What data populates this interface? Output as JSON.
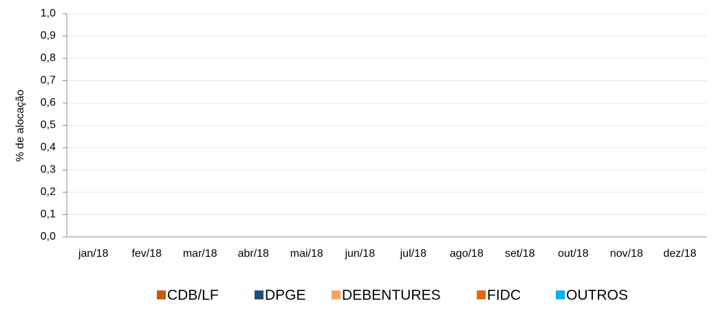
{
  "chart_data": {
    "type": "bar",
    "stacked": true,
    "y_label": "% de alocação",
    "categories": [
      "jan/18",
      "fev/18",
      "mar/18",
      "abr/18",
      "mai/18",
      "jun/18",
      "jul/18",
      "ago/18",
      "set/18",
      "out/18",
      "nov/18",
      "dez/18"
    ],
    "series": [
      {
        "name": "CDB/LF",
        "color": "#c55a11",
        "values": [
          0,
          0,
          0,
          0,
          0,
          0,
          0,
          0,
          0,
          0,
          0,
          0
        ]
      },
      {
        "name": "DPGE",
        "color": "#1f4e79",
        "values": [
          0,
          0,
          0,
          0,
          0,
          0,
          0,
          0,
          0,
          0,
          0,
          0
        ]
      },
      {
        "name": "DEBENTURES",
        "color": "#f4a460",
        "values": [
          0,
          0,
          0,
          0,
          0,
          0,
          0,
          0,
          0,
          0,
          0,
          0
        ]
      },
      {
        "name": "FIDC",
        "color": "#e36c0a",
        "values": [
          0,
          0,
          0,
          0,
          0,
          0,
          0,
          0,
          0,
          0,
          0,
          0
        ]
      },
      {
        "name": "OUTROS",
        "color": "#00b0f0",
        "values": [
          0,
          0,
          0,
          0,
          0,
          0,
          0,
          0,
          0,
          0,
          0,
          0
        ]
      }
    ],
    "ylim": [
      0,
      1
    ],
    "yticks": [
      {
        "value": 0,
        "label": "0,0"
      },
      {
        "value": 0.1,
        "label": "0,1"
      },
      {
        "value": 0.2,
        "label": "0,2"
      },
      {
        "value": 0.3,
        "label": "0,3"
      },
      {
        "value": 0.4,
        "label": "0,4"
      },
      {
        "value": 0.5,
        "label": "0,5"
      },
      {
        "value": 0.6,
        "label": "0,6"
      },
      {
        "value": 0.7,
        "label": "0,7"
      },
      {
        "value": 0.8,
        "label": "0,8"
      },
      {
        "value": 0.9,
        "label": "0,9"
      },
      {
        "value": 1,
        "label": "1,0"
      }
    ],
    "grid": true,
    "legend": "bottom"
  }
}
